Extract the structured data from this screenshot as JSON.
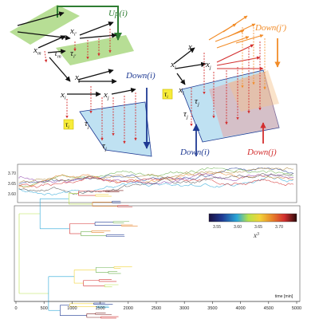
{
  "diagram": {
    "labels": {
      "x_m": "x",
      "x_m_sub": "m",
      "x_i": "x",
      "x_i_sub": "i",
      "x_j": "x",
      "x_j_sub": "j",
      "x_iprime": "x",
      "x_iprime_sub": "i′",
      "tau_m": "τ",
      "tau_m_sub": "m",
      "tau_iprime": "τ",
      "tau_iprime_sub": "i′",
      "tau_i": "τ",
      "tau_i_sub": "i",
      "tau_j": "τ",
      "tau_j_sub": "j",
      "up_i": "Up(i)",
      "down_i": "Down(i)",
      "down_j": "Down(j)",
      "down_jprime": "Down(j′)"
    },
    "colors": {
      "green": "#2e7d32",
      "green_fill": "#a5d67a",
      "blue": "#1f3a93",
      "blue_fill": "#bfe1f2",
      "red": "#d32f2f",
      "orange": "#f28c28",
      "yellow": "#f7ec3a"
    }
  },
  "timeseries": {
    "yticks": [
      "3.70",
      "3.65",
      "3.60"
    ]
  },
  "tree": {
    "xticks": [
      "0",
      "500",
      "1000",
      "1500",
      "2000",
      "2500",
      "3000",
      "3500",
      "4000",
      "4500",
      "5000"
    ],
    "xlabel": "time [min]",
    "colorbar_ticks": [
      "3.55",
      "3.60",
      "3.65",
      "3.70"
    ],
    "colorbar_label": "x",
    "colorbar_label_sup": "3"
  }
}
